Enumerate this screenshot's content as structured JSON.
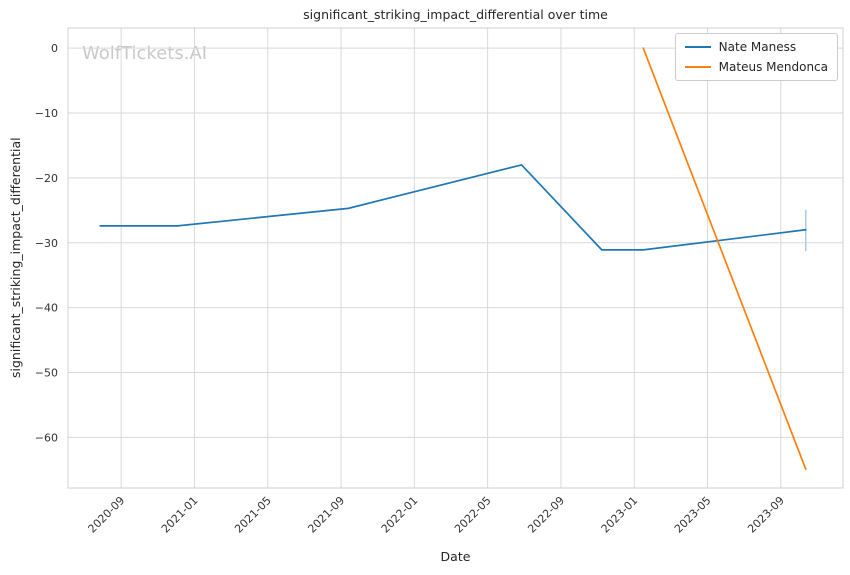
{
  "chart_data": {
    "type": "line",
    "title": "significant_striking_impact_differential over time",
    "xlabel": "Date",
    "ylabel": "significant_striking_impact_differential",
    "watermark": "WolfTickets.AI",
    "grid": true,
    "legend_position": "upper right",
    "x_ticks": [
      "2020-09",
      "2021-01",
      "2021-05",
      "2021-09",
      "2022-01",
      "2022-05",
      "2022-09",
      "2023-01",
      "2023-05",
      "2023-09"
    ],
    "y_ticks": [
      0,
      -10,
      -20,
      -30,
      -40,
      -50,
      -60
    ],
    "y_tick_labels": [
      "0",
      "−10",
      "−20",
      "−30",
      "−40",
      "−50",
      "−60"
    ],
    "xlim": [
      "2020-06-04",
      "2023-12-13"
    ],
    "ylim": [
      -67.8,
      3.1
    ],
    "series": [
      {
        "name": "Nate Maness",
        "color": "#1f77b4",
        "points": [
          {
            "date": "2020-07-27",
            "value": -27.4
          },
          {
            "date": "2020-12-03",
            "value": -27.4
          },
          {
            "date": "2021-09-13",
            "value": -24.7
          },
          {
            "date": "2022-06-27",
            "value": -18.0
          },
          {
            "date": "2022-11-08",
            "value": -31.1
          },
          {
            "date": "2023-01-16",
            "value": -31.1
          },
          {
            "date": "2023-10-12",
            "value": -28.0
          }
        ],
        "error_bar": {
          "date": "2023-10-12",
          "low": -31.3,
          "high": -24.9
        }
      },
      {
        "name": "Mateus Mendonca",
        "color": "#ff7f0e",
        "points": [
          {
            "date": "2023-01-16",
            "value": 0.0
          },
          {
            "date": "2023-10-12",
            "value": -64.9
          }
        ]
      }
    ],
    "colors": {
      "grid": "#d9d9d9",
      "frame": "#d0d0d0",
      "axis_text": "#333333",
      "label_text": "#262626",
      "watermark": "#c9c9c9",
      "error_bar": "#aecbe6"
    }
  }
}
